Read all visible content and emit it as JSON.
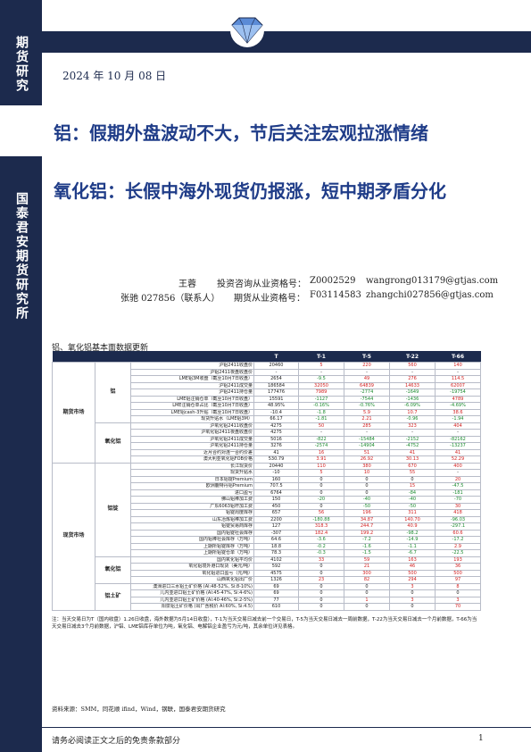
{
  "sidebar": {
    "label_top": "期货研究",
    "label_org": "国泰君安期货研究所"
  },
  "header": {
    "date": "2024 年 10 月 08 日"
  },
  "titles": {
    "title1": "铝：假期外盘波动不大，节后关注宏观拉涨情绪",
    "title2": "氧化铝：长假中海外现货仍报涨，短中期矛盾分化"
  },
  "authors": [
    {
      "name": "王蓉",
      "cert_label": "投资咨询从业资格号：",
      "cert": "Z0002529",
      "email": "wangrong013179@gtjas.com"
    },
    {
      "name": "张驰 027856（联系人）",
      "cert_label": "期货从业资格号：",
      "cert": "F03114583",
      "email": "zhangchi027856@gtjas.com"
    }
  ],
  "section_label": "铝、氧化铝基本面数据更新",
  "table": {
    "headers": [
      "",
      "",
      "",
      "T",
      "T-1",
      "T-5",
      "T-22",
      "T-66"
    ],
    "rows": [
      [
        "期货市场",
        "铝",
        "沪铝2411收盘价",
        "20460",
        "5",
        "220",
        "560",
        "140"
      ],
      [
        "",
        "",
        "沪铝2411夜盘收盘价",
        "-",
        "-",
        "-",
        "-",
        "-"
      ],
      [
        "",
        "",
        "LME铝3M收盘（截至10月7日收盘）",
        "2654",
        "-9.5",
        "49",
        "276",
        "114.5"
      ],
      [
        "",
        "",
        "沪铝2411成交量",
        "186584",
        "32050",
        "64839",
        "14633",
        "62007"
      ],
      [
        "",
        "",
        "沪铝2411持仓量",
        "177476",
        "7989",
        "-2774",
        "-1649",
        "-19754"
      ],
      [
        "",
        "",
        "LME铝注销仓单（截至10月7日收盘）",
        "15591",
        "-1127",
        "-7544",
        "-1436",
        "4789"
      ],
      [
        "",
        "",
        "LME注销仓单占比（截至10月7日收盘）",
        "48.95%",
        "-0.16%",
        "-0.76%",
        "-6.09%",
        "-4.69%"
      ],
      [
        "",
        "",
        "LME铝cash-3升贴（截至10月7日收盘）",
        "-10.4",
        "-1.8",
        "5.9",
        "10.7",
        "38.6"
      ],
      [
        "",
        "",
        "现货升贴水（LME铝3M）",
        "66.17",
        "-1.81",
        "2.21",
        "-0.96",
        "-1.94"
      ],
      [
        "",
        "氧化铝",
        "沪氧化铝2411收盘价",
        "4275",
        "50",
        "285",
        "323",
        "404"
      ],
      [
        "",
        "",
        "沪氧化铝2411夜盘收盘价",
        "4275",
        "-",
        "-",
        "-",
        "-"
      ],
      [
        "",
        "",
        "沪氧化铝2411成交量",
        "5016",
        "-822",
        "-15484",
        "-2152",
        "-82162"
      ],
      [
        "",
        "",
        "沪氧化铝2411持仓量",
        "3276",
        "-2574",
        "-14904",
        "-4752",
        "-13237"
      ],
      [
        "",
        "",
        "近月合约对连一合约价差",
        "41",
        "16",
        "51",
        "41",
        "41"
      ],
      [
        "",
        "",
        "澳大利亚氧化铝FOB价格",
        "530.79",
        "3.91",
        "26.92",
        "30.13",
        "52.29"
      ],
      [
        "现货市场",
        "铝锭",
        "长江现货价",
        "20440",
        "110",
        "380",
        "670",
        "400"
      ],
      [
        "",
        "",
        "现货升贴水",
        "-10",
        "5",
        "10",
        "55",
        "-"
      ],
      [
        "",
        "",
        "日本铝锭Premium",
        "160",
        "0",
        "0",
        "0",
        "20"
      ],
      [
        "",
        "",
        "欧洲鹿特丹铝Premium",
        "707.5",
        "0",
        "0",
        "15",
        "-47.5"
      ],
      [
        "",
        "",
        "进口盈亏",
        "6764",
        "0",
        "0",
        "-84",
        "-181"
      ],
      [
        "",
        "",
        "佛山铝棒加工费",
        "150",
        "-20",
        "-40",
        "-40",
        "-70"
      ],
      [
        "",
        "",
        "广东6063铝杆加工费",
        "450",
        "0",
        "-50",
        "-50",
        "30"
      ],
      [
        "",
        "",
        "铝锭周度库存",
        "657",
        "56",
        "196",
        "311",
        "418"
      ],
      [
        "",
        "",
        "山东冶炼铝棒加工费",
        "2200",
        "-180.88",
        "34.87",
        "140.70",
        "-96.03"
      ],
      [
        "",
        "",
        "铝锭贸易商库存",
        "127",
        "318.3",
        "244.7",
        "40.9",
        "-297.1"
      ],
      [
        "",
        "",
        "国内铝锭社会库存",
        "-307",
        "182.4",
        "199.2",
        "-98.2",
        "60.6"
      ],
      [
        "",
        "",
        "国内铝棒社会库存（万吨）",
        "64.6",
        "-3.6",
        "-7.2",
        "-14.9",
        "-17.2"
      ],
      [
        "",
        "",
        "上期所铝锭库存（万吨）",
        "18.8",
        "-0.2",
        "-1.6",
        "-1.1",
        "2.9"
      ],
      [
        "",
        "",
        "上期所铝锭仓单（万吨）",
        "78.3",
        "-0.3",
        "-1.5",
        "-6.7",
        "-22.5"
      ],
      [
        "",
        "氧化铝",
        "国内氧化铝平均价",
        "4102",
        "33",
        "59",
        "163",
        "193"
      ],
      [
        "",
        "",
        "氧化铝境外港口现货（美元/吨）",
        "592",
        "0",
        "21",
        "46",
        "36"
      ],
      [
        "",
        "",
        "氧化铝进口盈亏（元/吨）",
        "4575",
        "0",
        "300",
        "500",
        "500"
      ],
      [
        "",
        "",
        "山西氧化铝出厂价",
        "1326",
        "23",
        "82",
        "294",
        "97"
      ],
      [
        "",
        "铝土矿",
        "澳洲进口三水铝土矿价格 (Al:48-52%, Si:8-10%)",
        "69",
        "0",
        "0",
        "3",
        "8"
      ],
      [
        "",
        "",
        "几内亚进口铝土矿价格 (Al:45-47%, Si:4-6%)",
        "69",
        "0",
        "0",
        "0",
        "0"
      ],
      [
        "",
        "",
        "几内亚进口铝土矿价格 (Al:40-46%, Si:2-5%)",
        "77",
        "0",
        "1",
        "3",
        "3"
      ],
      [
        "",
        "",
        "阳泉铝土矿价格 (出厂含税价 Al:60%, Si:4.5)",
        "610",
        "0",
        "0",
        "0",
        "70"
      ]
    ]
  },
  "note": "注：当天交易日为T（国内收盘）1.26日收盘，海外数据为5月14日收盘），T-1为当天交易日减去前一个交易日，T-5为当天交易日减去一周前数据，T-22为当天交易日减去一个月前数据，T-66为当天交易日减去3个月前数据，沪铝、LME铝库存单位为吨，氧化铝、电解铝企业盈亏为元/吨，其余单位详见表格。",
  "sources": "资料来源：SMM，同花顺 ifind，Wind，钢联，国泰君安期货研究",
  "footer": {
    "disclaimer": "请务必阅读正文之后的免责条款部分",
    "page_number": "1"
  },
  "colors": {
    "navy": "#1c2a4d",
    "title_blue": "#1f3c88",
    "up": "#d21e1e",
    "down": "#1a8a2e"
  }
}
